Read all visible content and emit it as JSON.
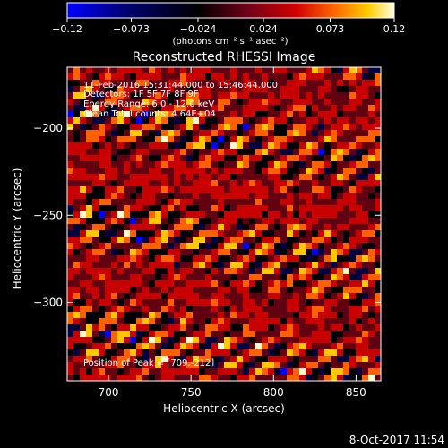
{
  "chart_data": {
    "type": "heatmap",
    "title": "Reconstructed RHESSI Image",
    "xlabel": "Heliocentric X (arcsec)",
    "ylabel": "Heliocentric Y (arcsec)",
    "xlim": [
      675,
      865
    ],
    "ylim": [
      -345,
      -165
    ],
    "x_ticks": [
      700,
      750,
      800,
      850
    ],
    "y_ticks": [
      -200,
      -250,
      -300
    ],
    "x_tick_labels": [
      "700",
      "750",
      "800",
      "850"
    ],
    "y_tick_labels": [
      "−200",
      "−250",
      "−300"
    ],
    "colorbar": {
      "range": [
        -0.12,
        0.12
      ],
      "ticks": [
        -0.12,
        -0.073,
        -0.024,
        0.024,
        0.073,
        0.12
      ],
      "tick_labels": [
        "−0.12",
        "−0.073",
        "−0.024",
        "0.024",
        "0.073",
        "0.12"
      ],
      "unit_label": "(photons cm⁻² s⁻¹ asec⁻²)"
    },
    "annotations": [
      "11-Feb-2016 15:31:44.000 to 15:46:44.000",
      "Detectors: 1F 5F 7F 8F 9F",
      "Energy Range: 6.0 - 12.0 keV",
      "Clean    Total counts: 4.64E+04"
    ],
    "peak_annotation": "Position of Peak = [709,-212]",
    "colormap": [
      "#0000ff",
      "#000040",
      "#000000",
      "#600010",
      "#c80000",
      "#ff6000",
      "#ffc800",
      "#ffffd0"
    ]
  },
  "footer": {
    "date": "8-Oct-2017 11:54"
  }
}
